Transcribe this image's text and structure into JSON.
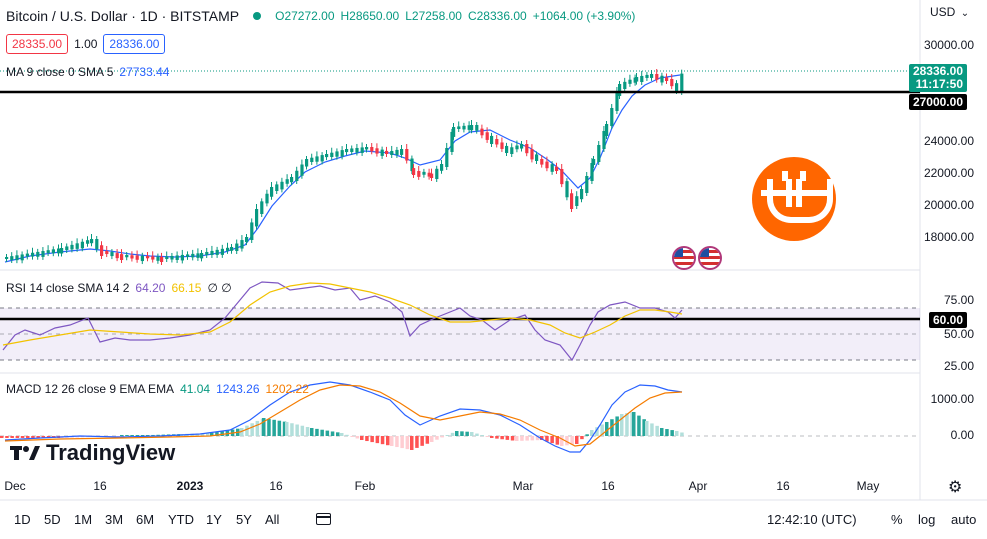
{
  "header": {
    "symbol_title": "Bitcoin / U.S. Dollar · 1D · BITSTAMP",
    "open": "O27272.00",
    "high": "H28650.00",
    "low": "L27258.00",
    "close": "C28336.00",
    "change": "+1064.00 (+3.90%)",
    "bid": "28335.00",
    "spread": "1.00",
    "ask": "28336.00",
    "currency": "USD"
  },
  "indicators": {
    "ma_label": "MA 9 close 0 SMA 5",
    "ma_value": "27733.44",
    "rsi_label": "RSI 14 close SMA 14 2",
    "rsi_value": "64.20",
    "rsi_sma_value": "66.15",
    "rsi_extra": "∅ ∅",
    "macd_label": "MACD 12 26 close 9 EMA EMA",
    "macd_hist": "41.04",
    "macd_line": "1243.26",
    "macd_signal": "1202.22"
  },
  "price_axis": [
    "30000.00",
    "24000.00",
    "22000.00",
    "20000.00",
    "18000.00"
  ],
  "price_tag": {
    "price": "28336.00",
    "countdown": "11:17:50"
  },
  "level_tag": "27000.00",
  "rsi_axis": [
    "75.00",
    "50.00",
    "25.00"
  ],
  "rsi_level_tag": "60.00",
  "macd_axis": [
    "1000.00",
    "0.00"
  ],
  "time_axis": [
    "Dec",
    "16",
    "2023",
    "16",
    "Feb",
    "Mar",
    "16",
    "Apr",
    "16",
    "May"
  ],
  "bottom_bar": {
    "ranges": [
      "1D",
      "5D",
      "1M",
      "3M",
      "6M",
      "YTD",
      "1Y",
      "5Y",
      "All"
    ],
    "clock": "12:42:10 (UTC)",
    "percent": "%",
    "log": "log",
    "auto": "auto"
  },
  "watermark": "TradingView",
  "colors": {
    "up": "#089981",
    "down": "#f23645",
    "ma": "#2962ff",
    "rsi": "#7e57c2",
    "rsi_sma": "#f2c200",
    "signal": "#f57c00",
    "logo": "#ff6600"
  },
  "icons": [
    "green-dot-icon",
    "chevron-down-icon",
    "calendar-range-icon",
    "gear-icon",
    "bitcoin-logo-icon",
    "us-flag-icon"
  ]
}
